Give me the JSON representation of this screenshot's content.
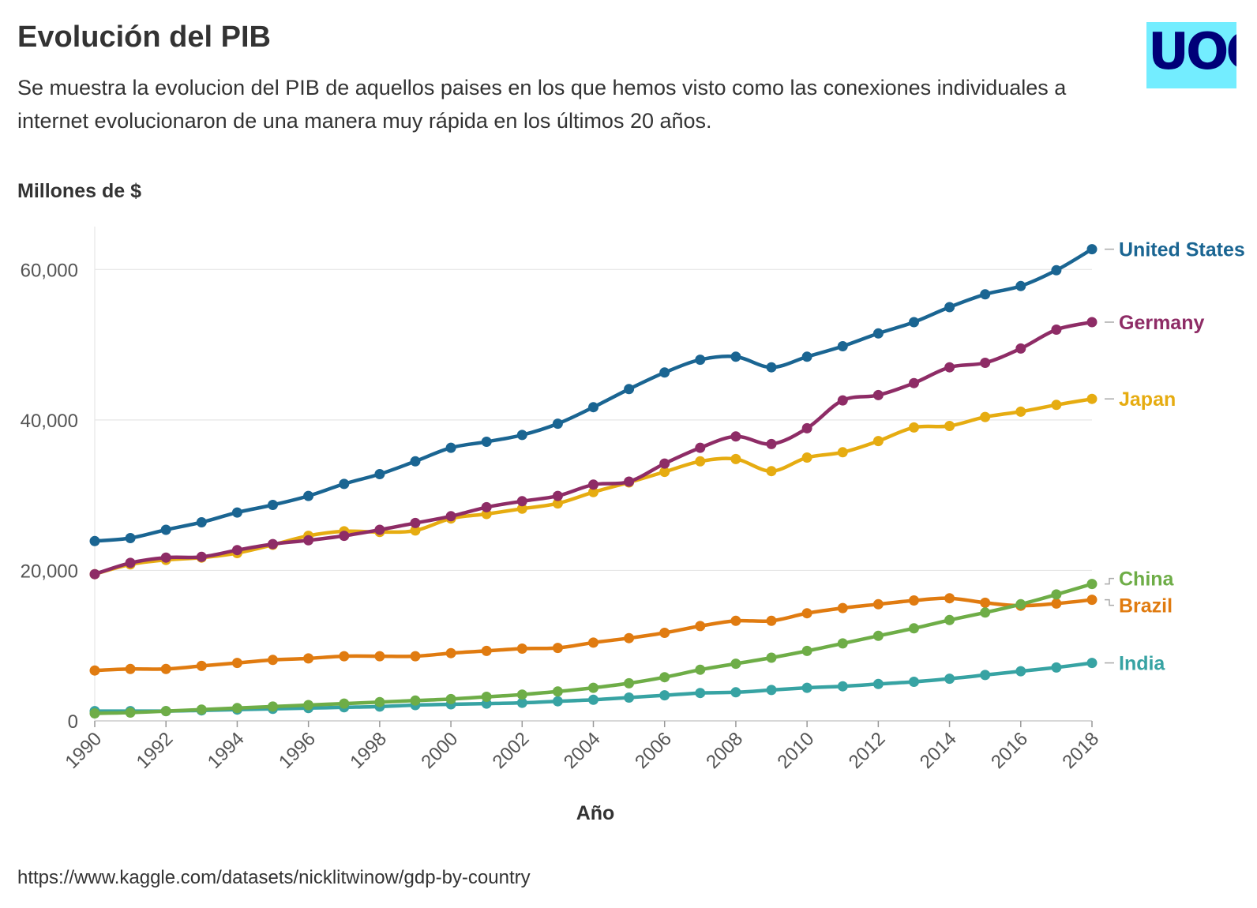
{
  "header": {
    "title": "Evolución del PIB",
    "subtitle": "Se muestra la evolucion del PIB de aquellos paises en los que hemos visto como las conexiones individuales a internet evolucionaron de una manera muy rápida en los últimos 20 años."
  },
  "logo": {
    "text": "UOC",
    "background": "#73edff",
    "color": "#000078"
  },
  "footer": {
    "source": "https://www.kaggle.com/datasets/nicklitwinow/gdp-by-country"
  },
  "chart_data": {
    "type": "line",
    "title": "Evolución del PIB",
    "ylabel": "Millones de $",
    "xlabel": "Año",
    "xlim": [
      1990,
      2018
    ],
    "ylim": [
      0,
      65700
    ],
    "xticks": [
      "1990",
      "1992",
      "1994",
      "1996",
      "1998",
      "2000",
      "2002",
      "2004",
      "2006",
      "2008",
      "2010",
      "2012",
      "2014",
      "2016",
      "2018"
    ],
    "yticks": [
      "0",
      "20,000",
      "40,000",
      "60,000"
    ],
    "grid": "horizontal",
    "legend": "direct labels at line ends",
    "x": [
      1990,
      1991,
      1992,
      1993,
      1994,
      1995,
      1996,
      1997,
      1998,
      1999,
      2000,
      2001,
      2002,
      2003,
      2004,
      2005,
      2006,
      2007,
      2008,
      2009,
      2010,
      2011,
      2012,
      2013,
      2014,
      2015,
      2016,
      2017,
      2018
    ],
    "series": [
      {
        "name": "United States",
        "color": "#1a6592",
        "values": [
          23900,
          24300,
          25400,
          26400,
          27700,
          28700,
          29900,
          31500,
          32800,
          34500,
          36300,
          37100,
          38000,
          39500,
          41700,
          44100,
          46300,
          48000,
          48400,
          47000,
          48400,
          49800,
          51500,
          53000,
          55000,
          56700,
          57800,
          59900,
          62700
        ]
      },
      {
        "name": "Germany",
        "color": "#8e2c66",
        "values": [
          19500,
          21000,
          21700,
          21800,
          22700,
          23500,
          24000,
          24600,
          25400,
          26300,
          27200,
          28400,
          29200,
          29900,
          31400,
          31800,
          34200,
          36300,
          37800,
          36800,
          38900,
          42600,
          43300,
          44900,
          47000,
          47600,
          49500,
          52000,
          53000
        ]
      },
      {
        "name": "Japan",
        "color": "#e6ac11",
        "values": [
          19500,
          20800,
          21400,
          21700,
          22300,
          23400,
          24600,
          25200,
          25100,
          25300,
          26900,
          27500,
          28200,
          28900,
          30400,
          31700,
          33100,
          34500,
          34800,
          33200,
          35000,
          35700,
          37200,
          39000,
          39200,
          40400,
          41100,
          42000,
          42800
        ]
      },
      {
        "name": "China",
        "color": "#6ead47",
        "values": [
          1000,
          1100,
          1300,
          1500,
          1700,
          1900,
          2100,
          2300,
          2500,
          2700,
          2900,
          3200,
          3500,
          3900,
          4400,
          5000,
          5800,
          6800,
          7600,
          8400,
          9300,
          10300,
          11300,
          12300,
          13400,
          14400,
          15500,
          16800,
          18200
        ]
      },
      {
        "name": "Brazil",
        "color": "#e07b10",
        "values": [
          6700,
          6900,
          6900,
          7300,
          7700,
          8100,
          8300,
          8600,
          8600,
          8600,
          9000,
          9300,
          9600,
          9700,
          10400,
          11000,
          11700,
          12600,
          13300,
          13300,
          14300,
          15000,
          15500,
          16000,
          16300,
          15700,
          15300,
          15600,
          16100
        ]
      },
      {
        "name": "India",
        "color": "#37a3a3",
        "values": [
          1300,
          1300,
          1300,
          1400,
          1500,
          1600,
          1700,
          1800,
          1900,
          2100,
          2200,
          2300,
          2400,
          2600,
          2800,
          3100,
          3400,
          3700,
          3800,
          4100,
          4400,
          4600,
          4900,
          5200,
          5600,
          6100,
          6600,
          7100,
          7700
        ]
      }
    ]
  }
}
